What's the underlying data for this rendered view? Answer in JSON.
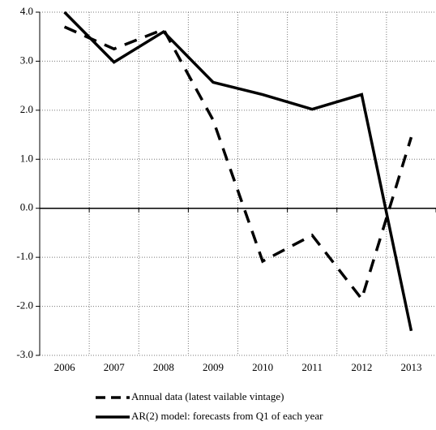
{
  "chart_data": {
    "type": "line",
    "categories": [
      "2006",
      "2007",
      "2008",
      "2009",
      "2010",
      "2011",
      "2012",
      "2013"
    ],
    "series": [
      {
        "name": "Annual data (latest vailable vintage)",
        "color": "#000000",
        "dash": true,
        "values": [
          3.7,
          3.25,
          3.65,
          1.8,
          -1.08,
          -0.55,
          -1.85,
          1.45
        ]
      },
      {
        "name": "AR(2) model: forecasts from Q1 of each year",
        "color": "#000000",
        "dash": false,
        "values": [
          4.0,
          2.98,
          3.6,
          2.57,
          2.32,
          2.02,
          2.32,
          -2.5
        ]
      }
    ],
    "ylim": [
      -3,
      4
    ],
    "yticks": [
      {
        "value": -3,
        "label": "-3.0"
      },
      {
        "value": -2,
        "label": "-2.0"
      },
      {
        "value": -1,
        "label": "-1.0"
      },
      {
        "value": 0,
        "label": "0.0"
      },
      {
        "value": 1,
        "label": "1.0"
      },
      {
        "value": 2,
        "label": "2.0"
      },
      {
        "value": 3,
        "label": "3.0"
      },
      {
        "value": 4,
        "label": "4.0"
      }
    ],
    "grid": true,
    "legend": "bottom"
  }
}
